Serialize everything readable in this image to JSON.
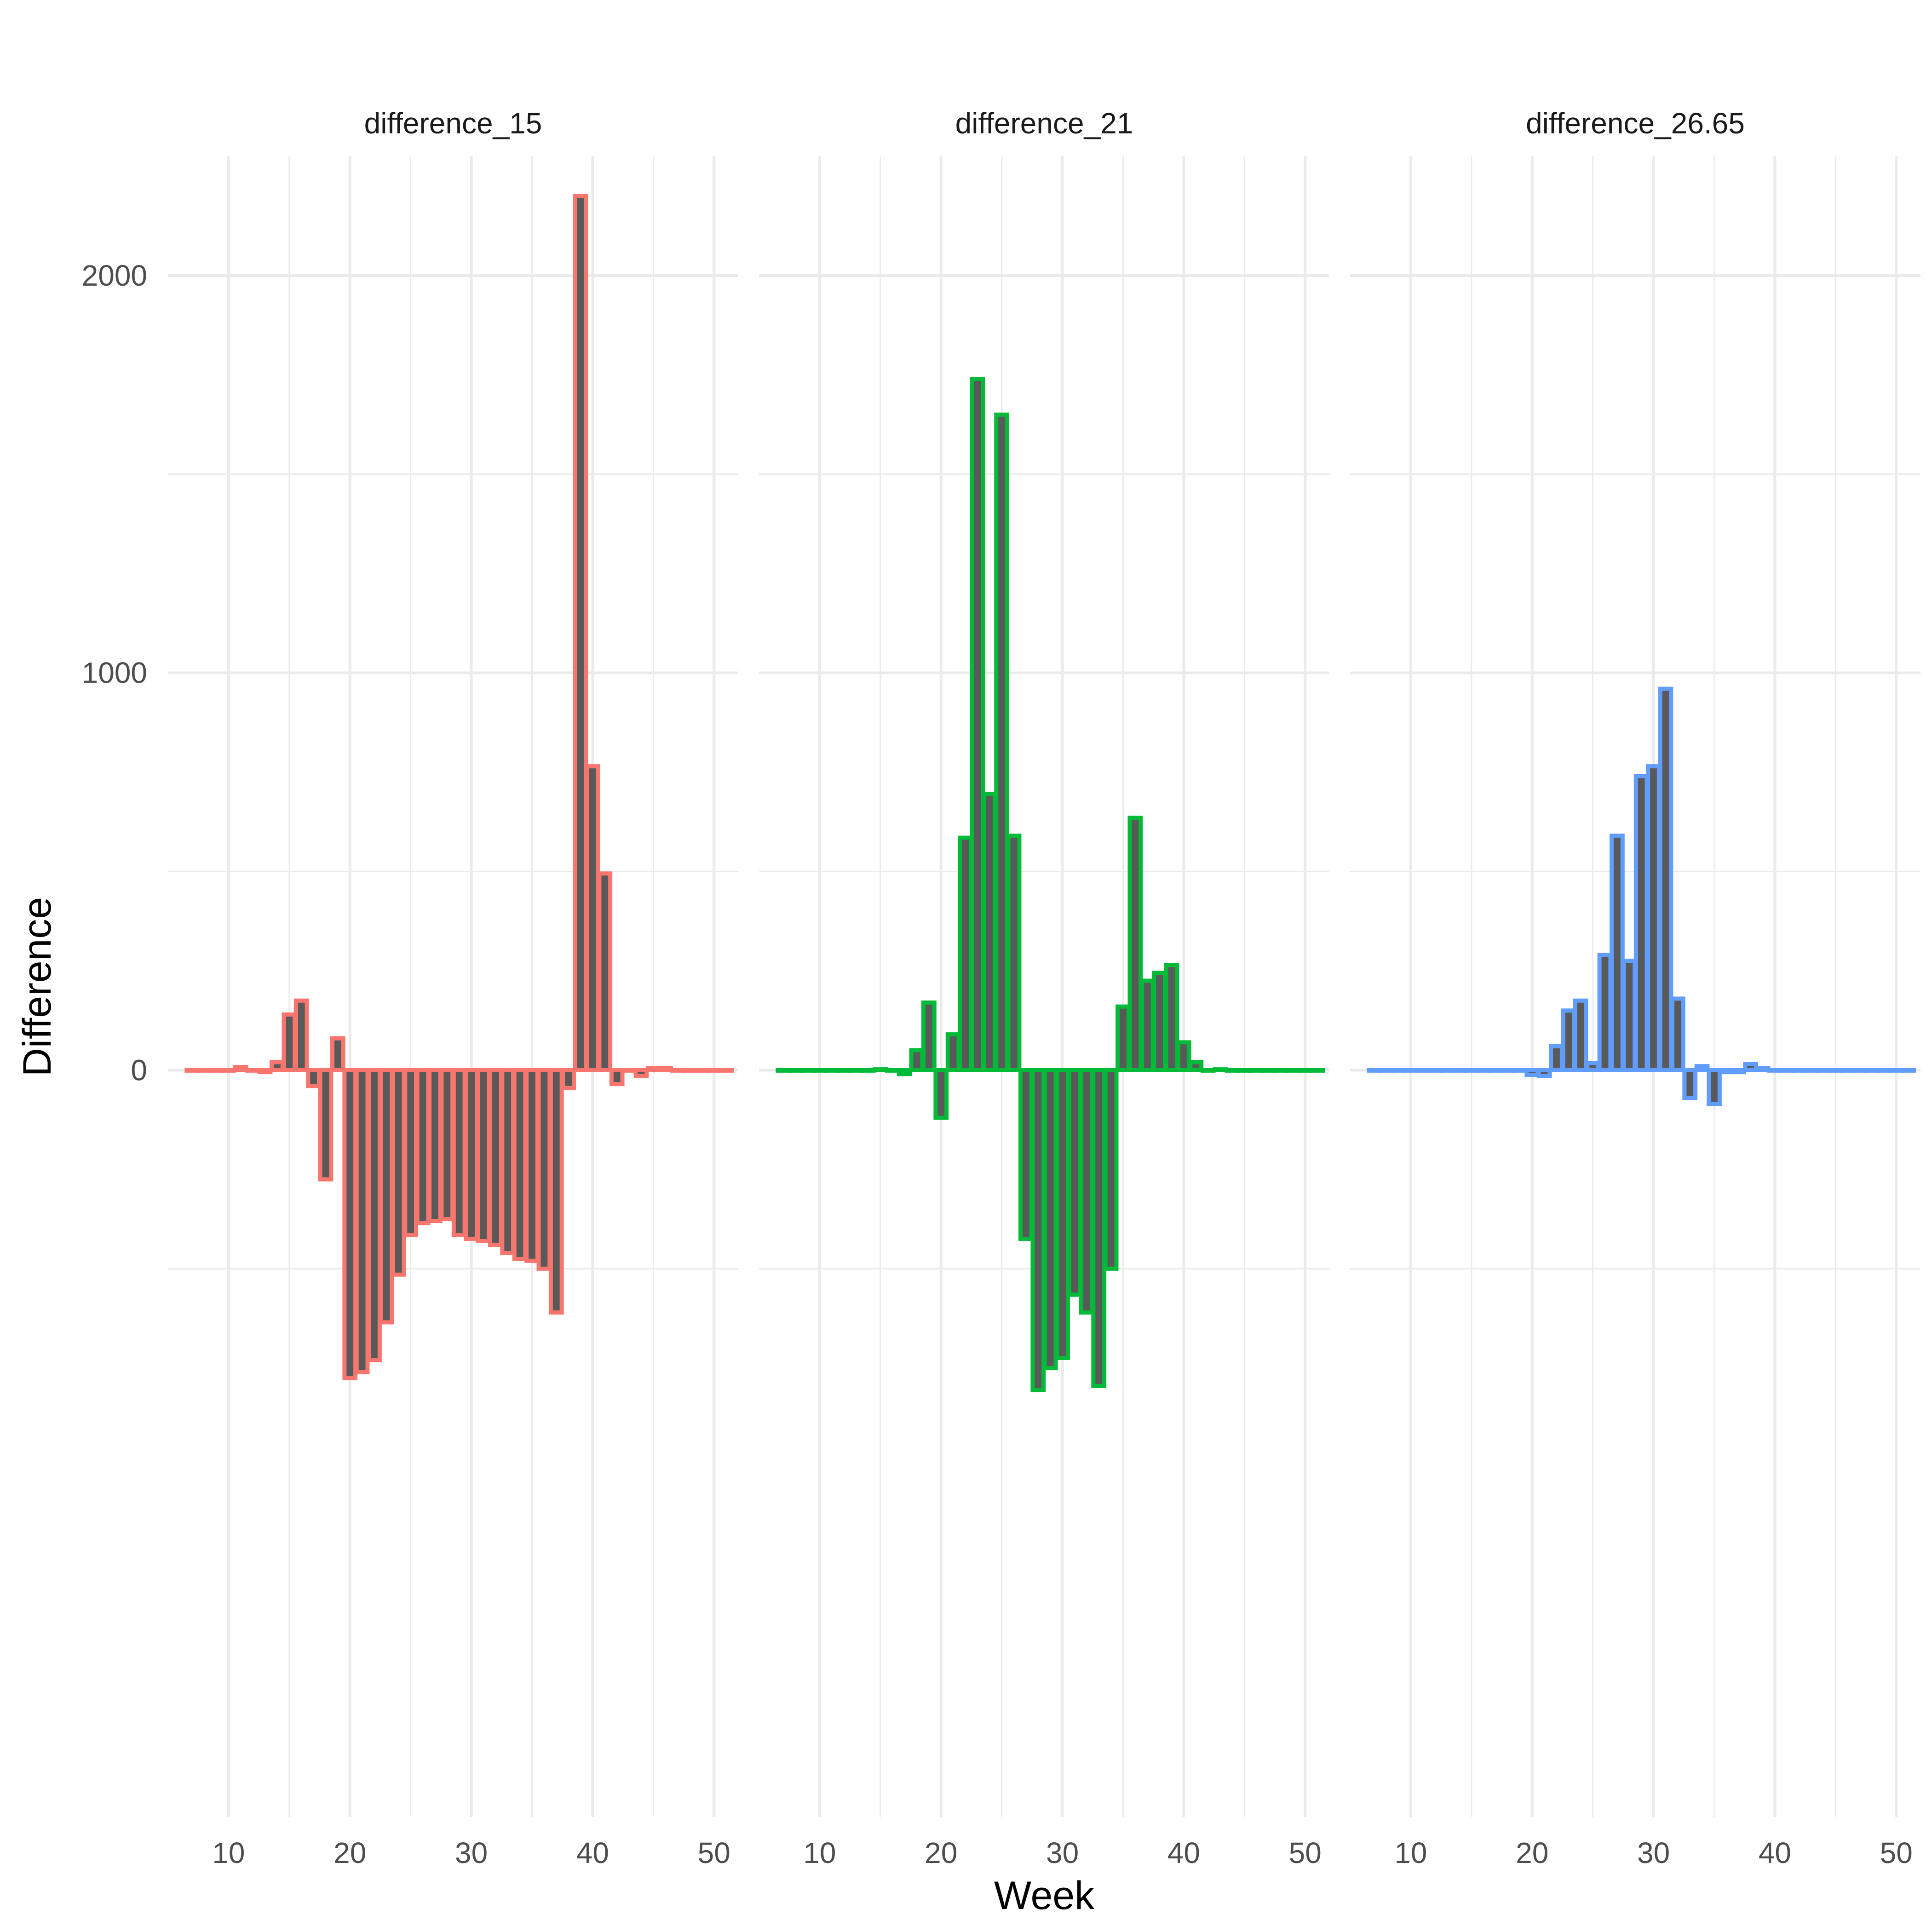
{
  "chart_data": {
    "type": "bar",
    "xlabel": "Week",
    "ylabel": "Difference",
    "xlim": [
      5,
      52
    ],
    "ylim": [
      -1880,
      2300
    ],
    "x_ticks": [
      10,
      20,
      30,
      40,
      50
    ],
    "y_ticks": [
      0,
      1000,
      2000
    ],
    "y_tick_labels": [
      "0",
      "1000",
      "2000"
    ],
    "grid": true,
    "bar_fill": "#595959",
    "panels": [
      {
        "name": "difference_15",
        "color": "#F8766D",
        "x": [
          7,
          8,
          9,
          10,
          11,
          12,
          13,
          14,
          15,
          16,
          17,
          18,
          19,
          20,
          21,
          22,
          23,
          24,
          25,
          26,
          27,
          28,
          29,
          30,
          31,
          32,
          33,
          34,
          35,
          36,
          37,
          38,
          39,
          40,
          41,
          42,
          43,
          44,
          45,
          46,
          47,
          48,
          49,
          50,
          51
        ],
        "values": [
          0,
          0,
          0,
          0,
          8,
          0,
          -5,
          20,
          140,
          175,
          -40,
          -275,
          80,
          -775,
          -760,
          -730,
          -635,
          -515,
          -415,
          -385,
          -380,
          -375,
          -415,
          -425,
          -430,
          -440,
          -460,
          -475,
          -480,
          -500,
          -610,
          -45,
          2200,
          765,
          495,
          -35,
          0,
          -15,
          5,
          5,
          0,
          0,
          0,
          0,
          0
        ]
      },
      {
        "name": "difference_21",
        "color": "#00BA38",
        "x": [
          7,
          8,
          9,
          10,
          11,
          12,
          13,
          14,
          15,
          16,
          17,
          18,
          19,
          20,
          21,
          22,
          23,
          24,
          25,
          26,
          27,
          28,
          29,
          30,
          31,
          32,
          33,
          34,
          35,
          36,
          37,
          38,
          39,
          40,
          41,
          42,
          43,
          44,
          45,
          46,
          47,
          48,
          49,
          50,
          51
        ],
        "values": [
          0,
          0,
          0,
          0,
          0,
          0,
          0,
          0,
          2,
          0,
          -10,
          50,
          170,
          -120,
          90,
          585,
          1740,
          695,
          1650,
          590,
          -425,
          -805,
          -750,
          -725,
          -565,
          -610,
          -795,
          -500,
          160,
          635,
          225,
          245,
          265,
          70,
          20,
          0,
          2,
          0,
          0,
          0,
          0,
          0,
          0,
          0,
          0
        ]
      },
      {
        "name": "difference_26.65",
        "color": "#619CFF",
        "x": [
          7,
          8,
          9,
          10,
          11,
          12,
          13,
          14,
          15,
          16,
          17,
          18,
          19,
          20,
          21,
          22,
          23,
          24,
          25,
          26,
          27,
          28,
          29,
          30,
          31,
          32,
          33,
          34,
          35,
          36,
          37,
          38,
          39,
          40,
          41,
          42,
          43,
          44,
          45,
          46,
          47,
          48,
          49,
          50,
          51
        ],
        "values": [
          0,
          0,
          0,
          0,
          0,
          0,
          0,
          0,
          0,
          0,
          0,
          0,
          0,
          -12,
          -15,
          60,
          150,
          175,
          18,
          290,
          590,
          275,
          740,
          765,
          960,
          180,
          -70,
          10,
          -85,
          -5,
          -5,
          15,
          5,
          0,
          0,
          0,
          0,
          0,
          0,
          0,
          0,
          0,
          0,
          0,
          0
        ]
      }
    ]
  }
}
